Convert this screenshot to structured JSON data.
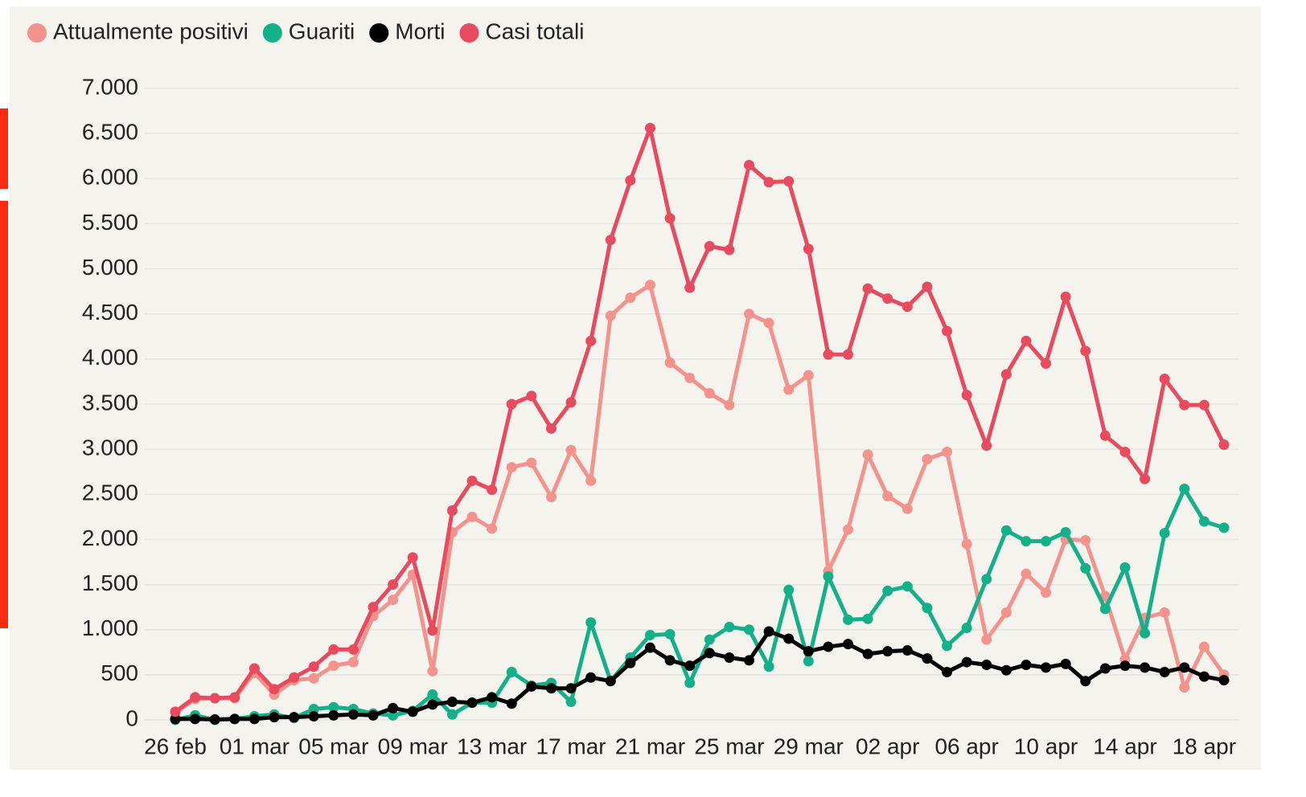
{
  "chart_data": {
    "type": "line",
    "categories": [
      "26 feb",
      null,
      null,
      null,
      "01 mar",
      null,
      null,
      null,
      "05 mar",
      null,
      null,
      null,
      "09 mar",
      null,
      null,
      null,
      "13 mar",
      null,
      null,
      null,
      "17 mar",
      null,
      null,
      null,
      "21 mar",
      null,
      null,
      null,
      "25 mar",
      null,
      null,
      null,
      "29 mar",
      null,
      null,
      null,
      "02 apr",
      null,
      null,
      null,
      "06 apr",
      null,
      null,
      null,
      "10 apr",
      null,
      null,
      null,
      "14 apr",
      null,
      null,
      null,
      "18 apr",
      null
    ],
    "series": [
      {
        "name": "Attualmente positivi",
        "color": "#f4928e",
        "values": [
          80,
          230,
          240,
          240,
          520,
          280,
          440,
          460,
          600,
          640,
          1150,
          1330,
          1610,
          540,
          2080,
          2250,
          2120,
          2800,
          2850,
          2470,
          2990,
          2650,
          4480,
          4680,
          4820,
          3960,
          3790,
          3620,
          3490,
          4500,
          4400,
          3660,
          3820,
          1650,
          2110,
          2940,
          2480,
          2340,
          2890,
          2970,
          1950,
          890,
          1190,
          1620,
          1410,
          2000,
          1990,
          1370,
          670,
          1130,
          1190,
          360,
          810,
          500
        ]
      },
      {
        "name": "Guariti",
        "color": "#14b08a",
        "values": [
          0,
          50,
          0,
          10,
          40,
          60,
          20,
          120,
          140,
          120,
          70,
          50,
          100,
          280,
          60,
          190,
          190,
          530,
          380,
          410,
          200,
          1080,
          430,
          690,
          940,
          950,
          410,
          890,
          1030,
          1000,
          590,
          1440,
          650,
          1590,
          1110,
          1120,
          1430,
          1480,
          1240,
          820,
          1020,
          1560,
          2100,
          1980,
          1980,
          2080,
          1680,
          1230,
          1690,
          960,
          2070,
          2560,
          2200,
          2130
        ]
      },
      {
        "name": "Morti",
        "color": "#000000",
        "values": [
          10,
          10,
          5,
          10,
          10,
          30,
          30,
          40,
          50,
          60,
          50,
          130,
          90,
          170,
          200,
          190,
          250,
          180,
          370,
          350,
          350,
          470,
          430,
          630,
          800,
          660,
          600,
          740,
          690,
          660,
          980,
          900,
          760,
          810,
          840,
          730,
          760,
          770,
          680,
          530,
          640,
          610,
          550,
          610,
          580,
          620,
          430,
          570,
          600,
          580,
          530,
          580,
          480,
          440
        ]
      },
      {
        "name": "Casi totali",
        "color": "#e84a5f",
        "values": [
          90,
          250,
          240,
          250,
          570,
          340,
          470,
          590,
          780,
          780,
          1250,
          1500,
          1800,
          990,
          2320,
          2650,
          2550,
          3500,
          3590,
          3230,
          3520,
          4200,
          5320,
          5980,
          6560,
          5560,
          4790,
          5250,
          5210,
          6150,
          5960,
          5970,
          5220,
          4050,
          4050,
          4780,
          4670,
          4580,
          4800,
          4310,
          3600,
          3040,
          3830,
          4200,
          3950,
          4690,
          4090,
          3150,
          2970,
          2670,
          3780,
          3490,
          3490,
          3050
        ]
      }
    ],
    "ylim": [
      0,
      7000
    ],
    "yticks": [
      0,
      500,
      {
        "value": 1000,
        "label": "1.000"
      },
      {
        "value": 1500,
        "label": "1.500"
      },
      {
        "value": 2000,
        "label": "2.000"
      },
      {
        "value": 2500,
        "label": "2.500"
      },
      {
        "value": 3000,
        "label": "3.000"
      },
      {
        "value": 3500,
        "label": "3.500"
      },
      {
        "value": 4000,
        "label": "4.000"
      },
      {
        "value": 4500,
        "label": "4.500"
      },
      {
        "value": 5000,
        "label": "5.000"
      },
      {
        "value": 5500,
        "label": "5.500"
      },
      {
        "value": 6000,
        "label": "6.000"
      },
      {
        "value": 6500,
        "label": "6.500"
      },
      {
        "value": 7000,
        "label": "7.000"
      }
    ],
    "grid": true,
    "legend": "top-left"
  }
}
